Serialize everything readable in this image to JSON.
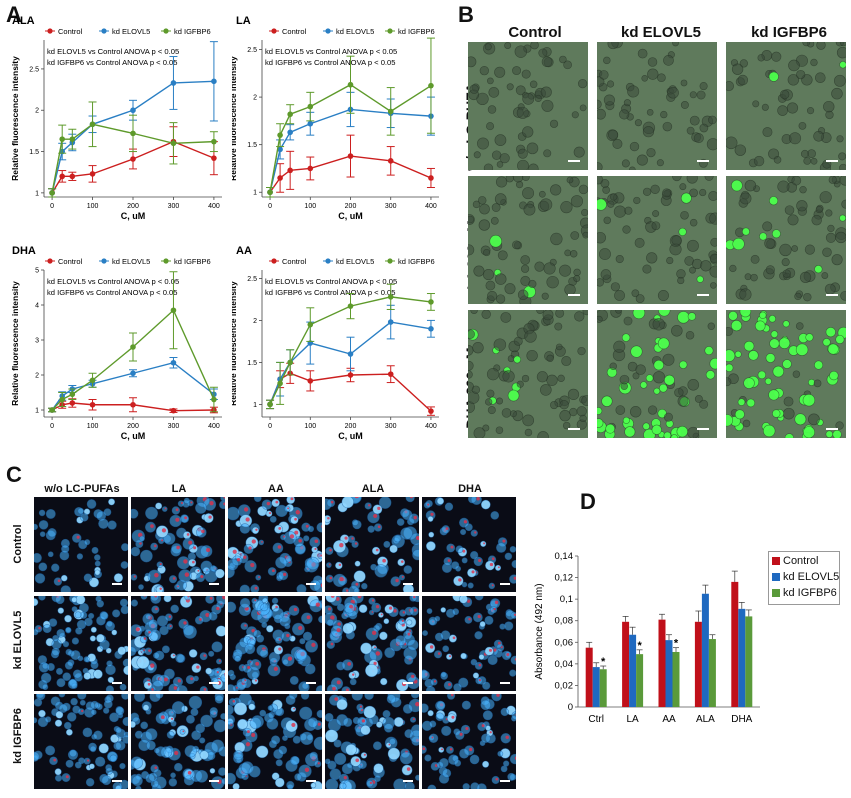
{
  "panel_letters": {
    "a": "A",
    "b": "B",
    "c": "C",
    "d": "D"
  },
  "colors": {
    "control": "#cc1f1f",
    "elovl5": "#2a7fc4",
    "igfbp6": "#5e9a2b",
    "bar_control": "#c0101a",
    "bar_elovl5": "#1f69c0",
    "bar_igfbp6": "#5a9a3a"
  },
  "chart_data": [
    {
      "type": "line",
      "title": "ALA",
      "xlabel": "C, uM",
      "ylabel": "Relative fluorescence intensity",
      "x": [
        0,
        25,
        50,
        100,
        200,
        300,
        400
      ],
      "xticks": [
        0,
        100,
        200,
        300,
        400
      ],
      "ylim": [
        0.95,
        2.85
      ],
      "yticks": [
        1.0,
        1.5,
        2.0,
        2.5
      ],
      "legend": [
        "Control",
        "kd ELOVL5",
        "kd IGFBP6"
      ],
      "annotations": [
        "kd ELOVL5 vs Control ANOVA p < 0.05",
        "kd IGFBP6 vs Control ANOVA p < 0.05"
      ],
      "series": [
        {
          "name": "Control",
          "values": [
            1.0,
            1.2,
            1.2,
            1.23,
            1.41,
            1.62,
            1.42
          ],
          "errors": [
            0.05,
            0.07,
            0.05,
            0.1,
            0.12,
            0.18,
            0.2
          ]
        },
        {
          "name": "kd ELOVL5",
          "values": [
            1.0,
            1.5,
            1.61,
            1.83,
            2.0,
            2.33,
            2.35
          ],
          "errors": [
            0.05,
            0.1,
            0.1,
            0.1,
            0.12,
            0.32,
            0.48
          ]
        },
        {
          "name": "kd IGFBP6",
          "values": [
            1.0,
            1.65,
            1.65,
            1.83,
            1.72,
            1.6,
            1.62
          ],
          "errors": [
            0.05,
            0.17,
            0.12,
            0.27,
            0.22,
            0.25,
            0.12
          ]
        }
      ]
    },
    {
      "type": "line",
      "title": "LA",
      "xlabel": "C, uM",
      "ylabel": "Relative fluorescence intensity",
      "x": [
        0,
        25,
        50,
        100,
        200,
        300,
        400
      ],
      "xticks": [
        0,
        100,
        200,
        300,
        400
      ],
      "ylim": [
        0.95,
        2.6
      ],
      "yticks": [
        1.0,
        1.5,
        2.0,
        2.5
      ],
      "legend": [
        "Control",
        "kd ELOVL5",
        "kd IGFBP6"
      ],
      "annotations": [
        "kd ELOVL5 vs Control ANOVA p < 0.05",
        "kd IGFBP6 vs Control ANOVA p < 0.05"
      ],
      "series": [
        {
          "name": "Control",
          "values": [
            1.0,
            1.15,
            1.23,
            1.25,
            1.38,
            1.33,
            1.15
          ],
          "errors": [
            0.05,
            0.15,
            0.2,
            0.12,
            0.22,
            0.15,
            0.1
          ]
        },
        {
          "name": "kd ELOVL5",
          "values": [
            1.0,
            1.45,
            1.63,
            1.72,
            1.87,
            1.83,
            1.8
          ],
          "errors": [
            0.05,
            0.1,
            0.08,
            0.12,
            0.18,
            0.15,
            0.2
          ]
        },
        {
          "name": "kd IGFBP6",
          "values": [
            1.0,
            1.6,
            1.82,
            1.9,
            2.13,
            1.85,
            2.12
          ],
          "errors": [
            0.05,
            0.12,
            0.1,
            0.15,
            0.3,
            0.25,
            0.5
          ]
        }
      ]
    },
    {
      "type": "line",
      "title": "DHA",
      "xlabel": "C, uM",
      "ylabel": "Relative fluorescence intensity",
      "x": [
        0,
        25,
        50,
        100,
        200,
        300,
        400
      ],
      "xticks": [
        0,
        100,
        200,
        300,
        400
      ],
      "ylim": [
        0.8,
        5.0
      ],
      "yticks": [
        1,
        2,
        3,
        4,
        5
      ],
      "legend": [
        "Control",
        "kd ELOVL5",
        "kd IGFBP6"
      ],
      "annotations": [
        "kd ELOVL5 vs Control ANOVA p < 0.05",
        "kd IGFBP6 vs Control ANOVA p < 0.05"
      ],
      "series": [
        {
          "name": "Control",
          "values": [
            1.0,
            1.15,
            1.2,
            1.15,
            1.15,
            0.98,
            1.0
          ],
          "errors": [
            0.05,
            0.1,
            0.12,
            0.15,
            0.2,
            0.05,
            0.08
          ]
        },
        {
          "name": "kd ELOVL5",
          "values": [
            1.0,
            1.4,
            1.6,
            1.75,
            2.05,
            2.35,
            1.45
          ],
          "errors": [
            0.05,
            0.12,
            0.1,
            0.1,
            0.1,
            0.15,
            0.15
          ]
        },
        {
          "name": "kd IGFBP6",
          "values": [
            1.0,
            1.3,
            1.45,
            1.85,
            2.8,
            3.85,
            1.3
          ],
          "errors": [
            0.05,
            0.2,
            0.15,
            0.2,
            0.4,
            1.1,
            0.35
          ]
        }
      ]
    },
    {
      "type": "line",
      "title": "AA",
      "xlabel": "C, uM",
      "ylabel": "Relative fluorescence intensity",
      "x": [
        0,
        25,
        50,
        100,
        200,
        300,
        400
      ],
      "xticks": [
        0,
        100,
        200,
        300,
        400
      ],
      "ylim": [
        0.85,
        2.6
      ],
      "yticks": [
        1.0,
        1.5,
        2.0,
        2.5
      ],
      "legend": [
        "Control",
        "kd ELOVL5",
        "kd IGFBP6"
      ],
      "annotations": [
        "kd ELOVL5 vs Control ANOVA p < 0.05",
        "kd IGFBP6 vs Control ANOVA p < 0.05"
      ],
      "series": [
        {
          "name": "Control",
          "values": [
            1.0,
            1.3,
            1.37,
            1.28,
            1.35,
            1.36,
            0.92
          ],
          "errors": [
            0.05,
            0.1,
            0.12,
            0.12,
            0.08,
            0.1,
            0.05
          ]
        },
        {
          "name": "kd ELOVL5",
          "values": [
            1.0,
            1.3,
            1.5,
            1.73,
            1.6,
            1.98,
            1.9
          ],
          "errors": [
            0.05,
            0.2,
            0.15,
            0.25,
            0.2,
            0.2,
            0.1
          ]
        },
        {
          "name": "kd IGFBP6",
          "values": [
            1.0,
            1.25,
            1.5,
            1.95,
            2.17,
            2.28,
            2.22
          ],
          "errors": [
            0.05,
            0.25,
            0.15,
            0.2,
            0.15,
            0.15,
            0.1
          ]
        }
      ]
    },
    {
      "type": "bar",
      "title": "",
      "xlabel": "",
      "ylabel": "Absorbance (492 nm)",
      "categories": [
        "Ctrl",
        "LA",
        "AA",
        "ALA",
        "DHA"
      ],
      "ylim": [
        0,
        0.14
      ],
      "yticks": [
        "0",
        "0,02",
        "0,04",
        "0,06",
        "0,08",
        "0,1",
        "0,12",
        "0,14"
      ],
      "legend": [
        "Control",
        "kd ELOVL5",
        "kd IGFBP6"
      ],
      "significance": [
        [
          0,
          2
        ],
        [
          1,
          2
        ],
        [
          2,
          2
        ]
      ],
      "significance_mark": "*",
      "series": [
        {
          "name": "Control",
          "values": [
            0.055,
            0.079,
            0.081,
            0.079,
            0.116
          ],
          "errors": [
            0.005,
            0.005,
            0.005,
            0.01,
            0.01
          ]
        },
        {
          "name": "kd ELOVL5",
          "values": [
            0.037,
            0.067,
            0.062,
            0.105,
            0.091
          ],
          "errors": [
            0.004,
            0.007,
            0.005,
            0.008,
            0.006
          ]
        },
        {
          "name": "kd IGFBP6",
          "values": [
            0.035,
            0.049,
            0.051,
            0.063,
            0.084
          ],
          "errors": [
            0.003,
            0.004,
            0.004,
            0.004,
            0.006
          ]
        }
      ]
    }
  ],
  "panel_b": {
    "columns": [
      "Control",
      "kd ELOVL5",
      "kd IGFBP6"
    ],
    "rows": [
      "w/o LC-PUFAs",
      "LA 300 μM",
      "DHA 200 μM"
    ]
  },
  "panel_c": {
    "columns": [
      "w/o LC-PUFAs",
      "LA",
      "AA",
      "ALA",
      "DHA"
    ],
    "rows": [
      "Control",
      "kd ELOVL5",
      "kd IGFBP6"
    ]
  }
}
